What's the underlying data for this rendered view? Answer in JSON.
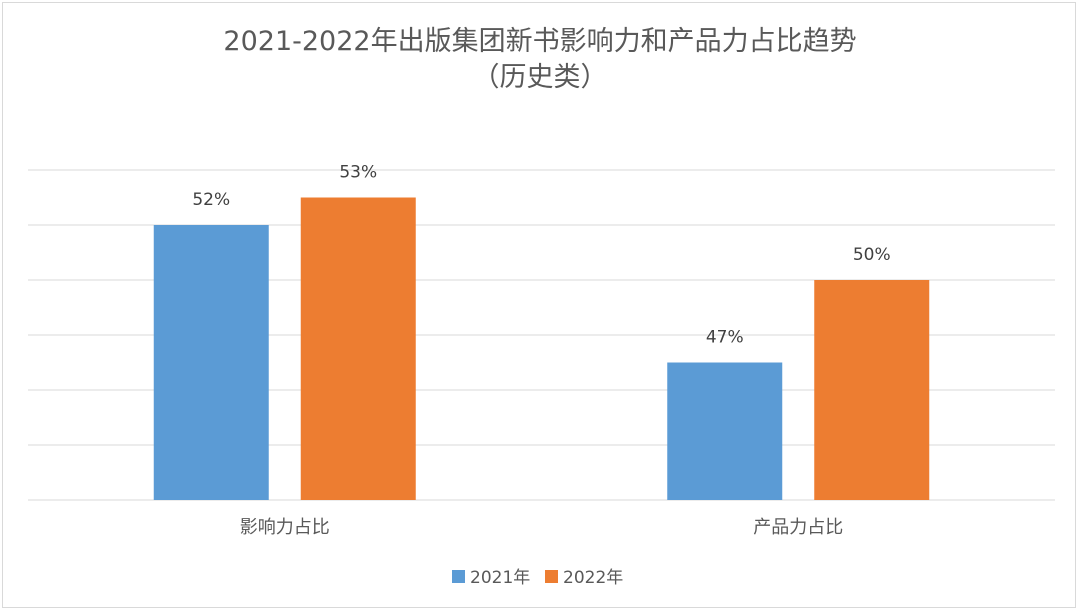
{
  "chart_data": {
    "type": "bar",
    "title": "2021-2022年出版集团新书影响力和产品力占比趋势",
    "subtitle": "（历史类）",
    "categories": [
      "影响力占比",
      "产品力占比"
    ],
    "series": [
      {
        "name": "2021年",
        "values": [
          52,
          47
        ],
        "labels": [
          "52%",
          "47%"
        ],
        "color": "#5b9bd5"
      },
      {
        "name": "2022年",
        "values": [
          53,
          50
        ],
        "labels": [
          "53%",
          "50%"
        ],
        "color": "#ed7d31"
      }
    ],
    "ylim": [
      42,
      54
    ],
    "grid": true,
    "legend": "bottom"
  }
}
